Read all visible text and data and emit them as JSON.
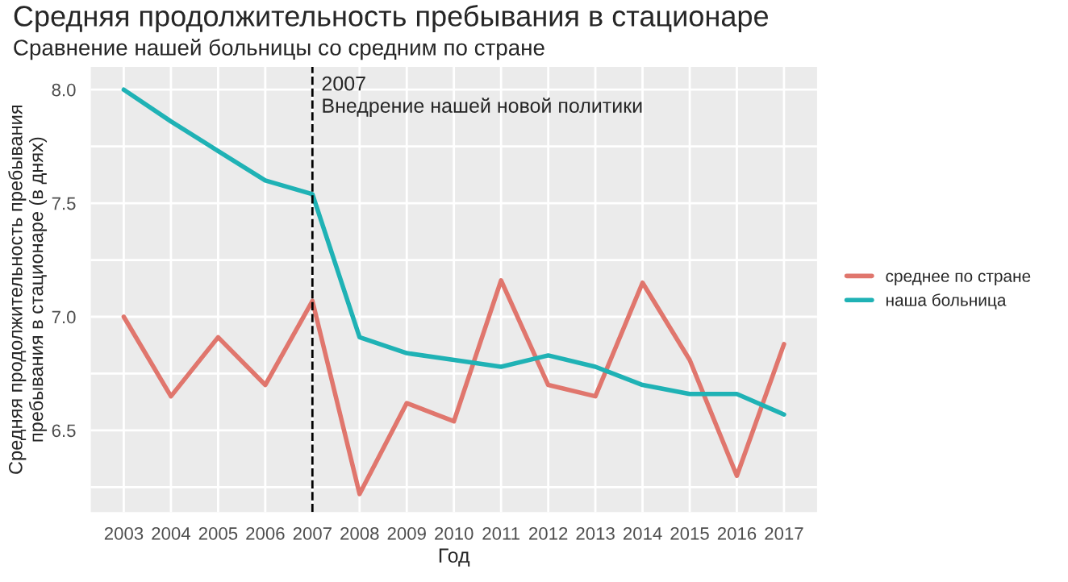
{
  "chart_data": {
    "type": "line",
    "title": "Средняя продолжительность пребывания в стационаре",
    "subtitle": "Сравнение нашей больницы со средним по стране",
    "xlabel": "Год",
    "ylabel": "Средняя продолжительность пребывания\nпребывания в стационаре (в днях)",
    "x": [
      2003,
      2004,
      2005,
      2006,
      2007,
      2008,
      2009,
      2010,
      2011,
      2012,
      2013,
      2014,
      2015,
      2016,
      2017
    ],
    "series": [
      {
        "name": "среднее по стране",
        "color": "#e0766d",
        "values": [
          7.0,
          6.65,
          6.91,
          6.7,
          7.07,
          6.22,
          6.62,
          6.54,
          7.16,
          6.7,
          6.65,
          7.15,
          6.81,
          6.3,
          6.88
        ]
      },
      {
        "name": "наша больница",
        "color": "#1fb2b5",
        "values": [
          8.0,
          7.86,
          7.73,
          7.6,
          7.54,
          6.91,
          6.84,
          6.81,
          6.78,
          6.83,
          6.78,
          6.7,
          6.66,
          6.66,
          6.57
        ]
      }
    ],
    "xlim": [
      2002.3,
      2017.7
    ],
    "xticks": [
      2003,
      2004,
      2005,
      2006,
      2007,
      2008,
      2009,
      2010,
      2011,
      2012,
      2013,
      2014,
      2015,
      2016,
      2017
    ],
    "ylim": [
      6.14,
      8.1
    ],
    "yticks": [
      {
        "value": 6.25,
        "label": null
      },
      {
        "value": 6.5,
        "label": "6.5"
      },
      {
        "value": 6.75,
        "label": null
      },
      {
        "value": 7.0,
        "label": "7.0"
      },
      {
        "value": 7.25,
        "label": null
      },
      {
        "value": 7.5,
        "label": "7.5"
      },
      {
        "value": 7.75,
        "label": null
      },
      {
        "value": 8.0,
        "label": "8.0"
      }
    ],
    "ref_lines": [
      {
        "axis": "x",
        "value": 2007,
        "label": "2007\nВнедрение нашей новой политики",
        "color": "#000000",
        "line_style": "dashed"
      }
    ],
    "grid": true,
    "legend": "right",
    "line_style": "solid",
    "marker": "none"
  }
}
